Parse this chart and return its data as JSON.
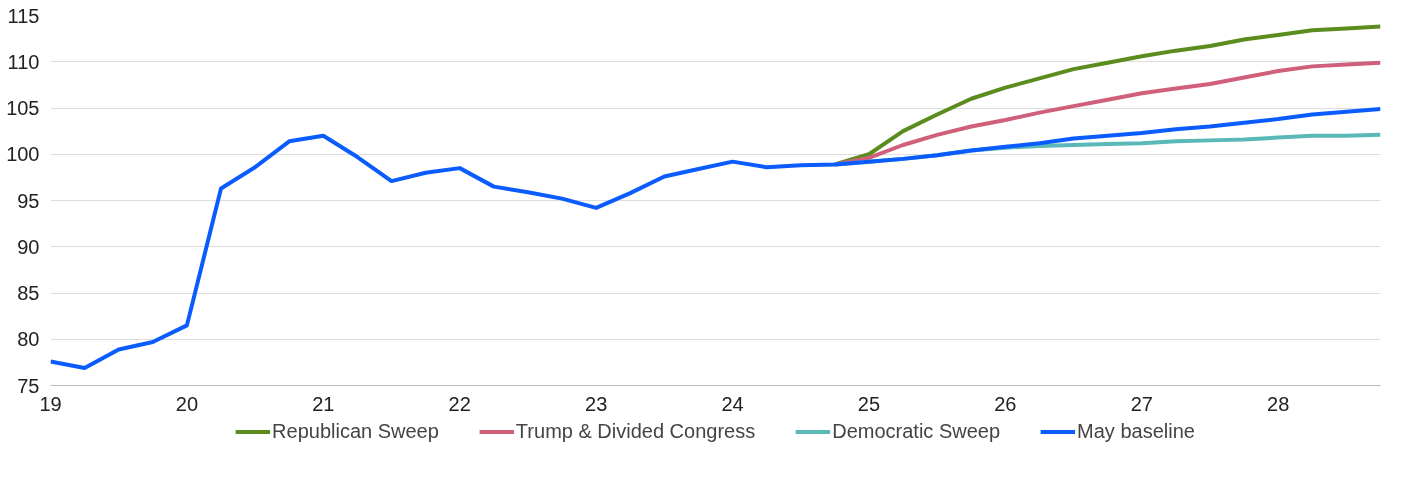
{
  "chart_data": {
    "type": "line",
    "xlim": [
      19,
      28.75
    ],
    "ylim": [
      75,
      115
    ],
    "xticks": [
      19,
      20,
      21,
      22,
      23,
      24,
      25,
      26,
      27,
      28
    ],
    "yticks": [
      75,
      80,
      85,
      90,
      95,
      100,
      105,
      110,
      115
    ],
    "grid": "y",
    "legend": "bottom",
    "marker": "none",
    "line_style": "solid",
    "series": [
      {
        "name": "Republican Sweep",
        "color": "#5b8c1e",
        "x": [
          24.75,
          25,
          25.25,
          25.5,
          25.75,
          26,
          26.25,
          26.5,
          26.75,
          27,
          27.25,
          27.5,
          27.75,
          28,
          28.25,
          28.5,
          28.75
        ],
        "values": [
          98.9,
          100.0,
          102.5,
          104.3,
          106.0,
          107.2,
          108.2,
          109.2,
          109.9,
          110.6,
          111.2,
          111.7,
          112.4,
          112.9,
          113.4,
          113.6,
          113.8
        ]
      },
      {
        "name": "Trump & Divided Congress",
        "color": "#d0607a",
        "x": [
          24.75,
          25,
          25.25,
          25.5,
          25.75,
          26,
          26.25,
          26.5,
          26.75,
          27,
          27.25,
          27.5,
          27.75,
          28,
          28.25,
          28.5,
          28.75
        ],
        "values": [
          98.9,
          99.6,
          101.0,
          102.1,
          103.0,
          103.7,
          104.5,
          105.2,
          105.9,
          106.6,
          107.1,
          107.6,
          108.3,
          109.0,
          109.5,
          109.7,
          109.9
        ]
      },
      {
        "name": "Democratic Sweep",
        "color": "#5bb8b8",
        "x": [
          24.75,
          25,
          25.25,
          25.5,
          25.75,
          26,
          26.25,
          26.5,
          26.75,
          27,
          27.25,
          27.5,
          27.75,
          28,
          28.25,
          28.5,
          28.75
        ],
        "values": [
          98.9,
          99.2,
          99.5,
          99.9,
          100.4,
          100.7,
          100.9,
          101.0,
          101.1,
          101.2,
          101.4,
          101.5,
          101.6,
          101.8,
          102.0,
          102.0,
          102.1
        ]
      },
      {
        "name": "May baseline",
        "color": "#0a5cff",
        "x": [
          19,
          19.25,
          19.5,
          19.75,
          20,
          20.25,
          20.5,
          20.75,
          21,
          21.25,
          21.5,
          21.75,
          22,
          22.25,
          22.5,
          22.75,
          23,
          23.25,
          23.5,
          23.75,
          24,
          24.25,
          24.5,
          24.75,
          25,
          25.25,
          25.5,
          25.75,
          26,
          26.25,
          26.5,
          26.75,
          27,
          27.25,
          27.5,
          27.75,
          28,
          28.25,
          28.5,
          28.75
        ],
        "values": [
          77.6,
          76.9,
          78.9,
          79.7,
          81.5,
          96.3,
          98.6,
          101.4,
          102.0,
          99.7,
          97.1,
          98.0,
          98.5,
          96.5,
          95.9,
          95.2,
          94.2,
          95.8,
          97.6,
          98.4,
          99.2,
          98.6,
          98.8,
          98.9,
          99.2,
          99.5,
          99.9,
          100.4,
          100.8,
          101.2,
          101.7,
          102.0,
          102.3,
          102.7,
          103.0,
          103.4,
          103.8,
          104.3,
          104.6,
          104.9
        ]
      }
    ]
  }
}
